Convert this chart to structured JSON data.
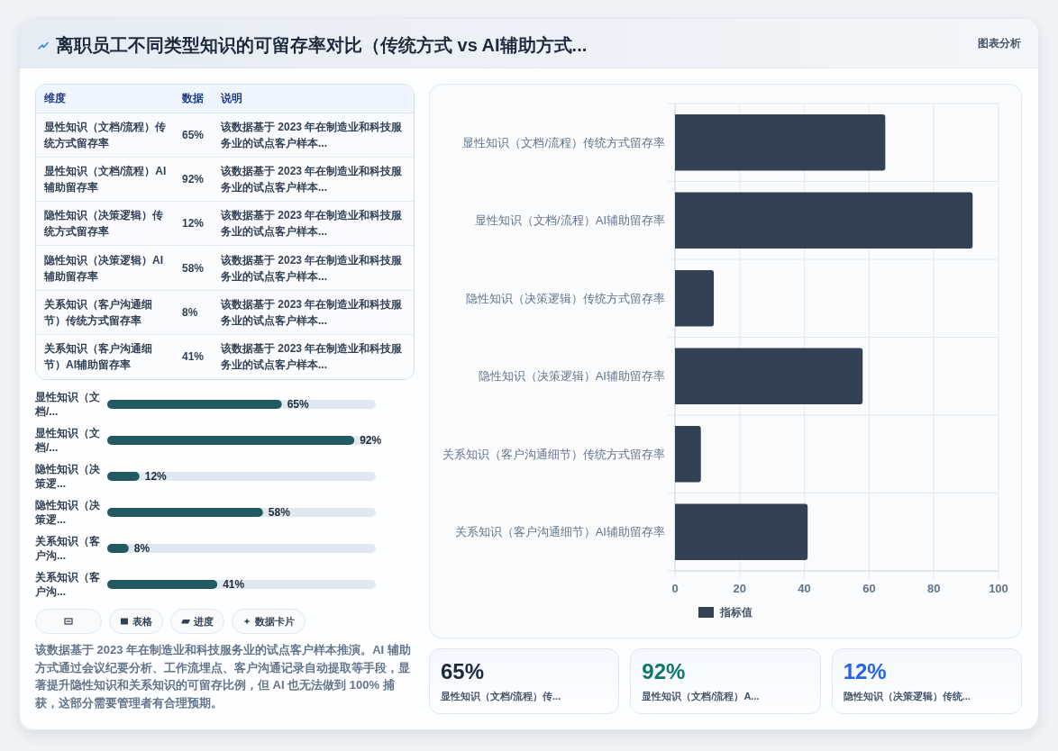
{
  "chart_data": [
    {
      "type": "other",
      "title": "离职员工不同类型知识的可留存率对比（传统方式 vs AI辅助方式...",
      "annotations": [
        "图表分析"
      ]
    },
    {
      "type": "other",
      "categories": [
        "显性知识（文档/流程）传统方式留存率",
        "显性知识（文档/流程）AI辅助留存率",
        "隐性知识（决策逻辑）传统方式留存率",
        "隐性知识（决策逻辑）AI辅助留存率",
        "关系知识（客户沟通细节）传统方式留存率",
        "关系知识（客户沟通细节）AI辅助留存率"
      ],
      "values": [
        65,
        92,
        12,
        58,
        8,
        41
      ],
      "value_labels": [
        "65%",
        "92%",
        "12%",
        "58%",
        "8%",
        "41%"
      ],
      "annotations": [
        "维度",
        "数据",
        "说明",
        "该数据基于 2023 年在制造业和科技服务业的试点客户样本...",
        "该数据基于 2023 年在制造业和科技服务业的试点客户样本...",
        "该数据基于 2023 年在制造业和科技服务业的试点客户样本...",
        "该数据基于 2023 年在制造业和科技服务业的试点客户样本...",
        "该数据基于 2023 年在制造业和科技服务业的试点客户样本...",
        "该数据基于 2023 年在制造业和科技服务业的试点客户样本..."
      ]
    },
    {
      "type": "bar",
      "orientation": "horizontal",
      "categories": [
        "显性知识（文档/...",
        "显性知识（文档/...",
        "隐性知识（决策逻...",
        "隐性知识（决策逻...",
        "关系知识（客户沟...",
        "关系知识（客户沟..."
      ],
      "values": [
        65,
        92,
        12,
        58,
        8,
        41
      ],
      "value_labels": [
        "65%",
        "92%",
        "12%",
        "58%",
        "8%",
        "41%"
      ],
      "color": "#215b61",
      "xlim": [
        0,
        100
      ],
      "tick_labels": "y"
    },
    {
      "type": "other",
      "categories": [
        null,
        "表格",
        "进度",
        "数据卡片"
      ],
      "annotations": [
        "该数据基于 2023 年在制造业和科技服务业的试点客户样本推演。AI 辅助方式通过会议纪要分析、工作流埋点、客户沟通记录自动提取等手段，显著提升隐性知识和关系知识的可留存比例，但 AI 也无法做到 100% 捕获，这部分需要管理者有合理预期。"
      ]
    },
    {
      "type": "bar",
      "orientation": "horizontal",
      "categories": [
        "显性知识（文档/流程）传统方式留存率",
        "显性知识（文档/流程）AI辅助留存率",
        "隐性知识（决策逻辑）传统方式留存率",
        "隐性知识（决策逻辑）AI辅助留存率",
        "关系知识（客户沟通细节）传统方式留存率",
        "关系知识（客户沟通细节）AI辅助留存率"
      ],
      "series": [
        {
          "name": "指标值",
          "color": "#334155",
          "values": [
            65,
            92,
            12,
            58,
            8,
            41
          ]
        }
      ],
      "xlim": [
        0,
        100
      ],
      "xticks": [
        0,
        20,
        40,
        60,
        80,
        100
      ],
      "grid": true,
      "legend": "bottom"
    },
    {
      "type": "other",
      "categories": [
        "显性知识（文档/流程）传...",
        "显性知识（文档/流程）A...",
        "隐性知识（决策逻辑）传统..."
      ],
      "values": [
        65,
        92,
        12
      ],
      "value_labels": [
        "65%",
        "92%",
        "12%"
      ]
    }
  ]
}
